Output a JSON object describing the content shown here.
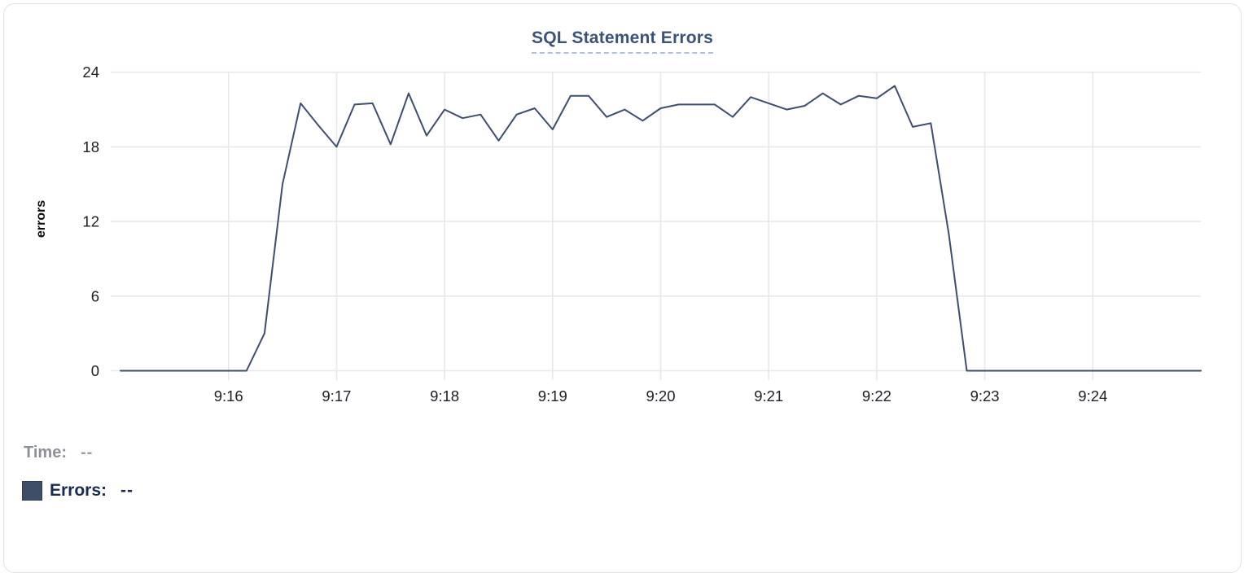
{
  "card": {
    "title": "SQL Statement Errors"
  },
  "chart_data": {
    "type": "line",
    "title": "SQL Statement Errors",
    "xlabel": "",
    "ylabel": "errors",
    "ylim": [
      0,
      24
    ],
    "yticks": [
      0,
      6,
      12,
      18,
      24
    ],
    "xticks": [
      "9:16",
      "9:17",
      "9:18",
      "9:19",
      "9:20",
      "9:21",
      "9:22",
      "9:23",
      "9:24"
    ],
    "x_start": "9:15:00",
    "x_end": "9:25:00",
    "grid": true,
    "legend_position": "below-left",
    "series": [
      {
        "name": "Errors",
        "color": "#3e4e6c",
        "points": [
          [
            "9:15:00",
            0
          ],
          [
            "9:15:10",
            0
          ],
          [
            "9:15:20",
            0
          ],
          [
            "9:15:30",
            0
          ],
          [
            "9:15:40",
            0
          ],
          [
            "9:15:50",
            0
          ],
          [
            "9:16:00",
            0
          ],
          [
            "9:16:10",
            0
          ],
          [
            "9:16:20",
            3
          ],
          [
            "9:16:30",
            15
          ],
          [
            "9:16:40",
            21.5
          ],
          [
            "9:16:50",
            19.7
          ],
          [
            "9:17:00",
            18
          ],
          [
            "9:17:10",
            21.4
          ],
          [
            "9:17:20",
            21.5
          ],
          [
            "9:17:30",
            18.2
          ],
          [
            "9:17:40",
            22.3
          ],
          [
            "9:17:50",
            18.9
          ],
          [
            "9:18:00",
            21
          ],
          [
            "9:18:10",
            20.3
          ],
          [
            "9:18:20",
            20.6
          ],
          [
            "9:18:30",
            18.5
          ],
          [
            "9:18:40",
            20.6
          ],
          [
            "9:18:50",
            21.1
          ],
          [
            "9:19:00",
            19.4
          ],
          [
            "9:19:10",
            22.1
          ],
          [
            "9:19:20",
            22.1
          ],
          [
            "9:19:30",
            20.4
          ],
          [
            "9:19:40",
            21
          ],
          [
            "9:19:50",
            20.1
          ],
          [
            "9:20:00",
            21.1
          ],
          [
            "9:20:10",
            21.4
          ],
          [
            "9:20:20",
            21.4
          ],
          [
            "9:20:30",
            21.4
          ],
          [
            "9:20:40",
            20.4
          ],
          [
            "9:20:50",
            22
          ],
          [
            "9:21:00",
            21.5
          ],
          [
            "9:21:10",
            21
          ],
          [
            "9:21:20",
            21.3
          ],
          [
            "9:21:30",
            22.3
          ],
          [
            "9:21:40",
            21.4
          ],
          [
            "9:21:50",
            22.1
          ],
          [
            "9:22:00",
            21.9
          ],
          [
            "9:22:10",
            22.9
          ],
          [
            "9:22:20",
            19.6
          ],
          [
            "9:22:30",
            19.9
          ],
          [
            "9:22:40",
            11
          ],
          [
            "9:22:50",
            0
          ],
          [
            "9:23:00",
            0
          ],
          [
            "9:23:10",
            0
          ],
          [
            "9:23:20",
            0
          ],
          [
            "9:23:30",
            0
          ],
          [
            "9:23:40",
            0
          ],
          [
            "9:23:50",
            0
          ],
          [
            "9:24:00",
            0
          ],
          [
            "9:24:10",
            0
          ],
          [
            "9:24:20",
            0
          ],
          [
            "9:24:30",
            0
          ],
          [
            "9:24:40",
            0
          ],
          [
            "9:24:50",
            0
          ],
          [
            "9:25:00",
            0
          ]
        ]
      }
    ],
    "colors": {
      "grid": "#e8e8ea",
      "tick_text": "#202124",
      "axis_title": "#0d0d0d"
    }
  },
  "readout": {
    "time_label": "Time:",
    "time_value": "--",
    "errors_label": "Errors:",
    "errors_value": "--",
    "swatch_color": "#3e4d68"
  }
}
